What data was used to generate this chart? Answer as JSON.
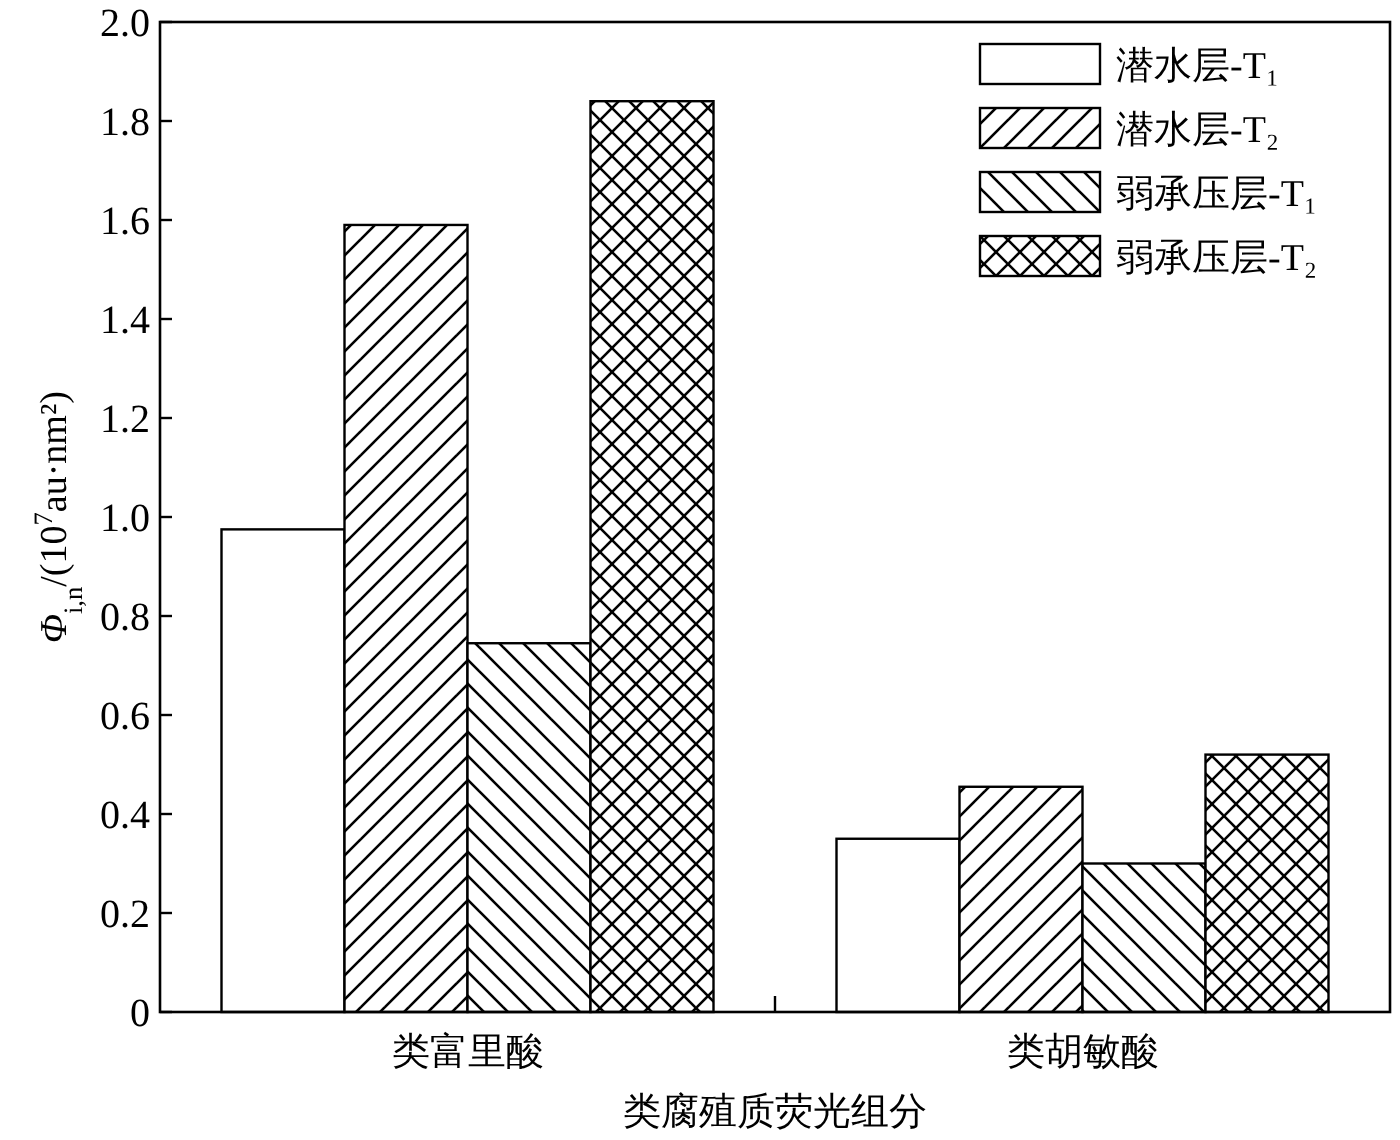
{
  "chart_data": {
    "type": "bar",
    "xlabel": "类腐殖质荧光组分",
    "ylabel": "Φ$_{i,n}$/(10$^{7}$au·nm²)",
    "categories": [
      "类富里酸",
      "类胡敏酸"
    ],
    "series": [
      {
        "name": "潜水层-T₁",
        "color": "#000000",
        "values": [
          0.975,
          0.35
        ]
      },
      {
        "name": "潜水层-T₂",
        "color": "#000000",
        "values": [
          1.59,
          0.455
        ]
      },
      {
        "name": "弱承压层-T₁",
        "color": "#000000",
        "values": [
          0.745,
          0.3
        ]
      },
      {
        "name": "弱承压层-T₂",
        "color": "#000000",
        "values": [
          1.84,
          0.52
        ]
      }
    ],
    "ylim": [
      0,
      2.0
    ],
    "yticks": [
      0,
      0.2,
      0.4,
      0.6,
      0.8,
      {
        "value": 1.0,
        "label": "1.0"
      },
      1.2,
      1.4,
      1.6,
      1.8,
      {
        "value": 2.0,
        "label": "2.0"
      }
    ],
    "legend": "top right",
    "grid": false
  }
}
